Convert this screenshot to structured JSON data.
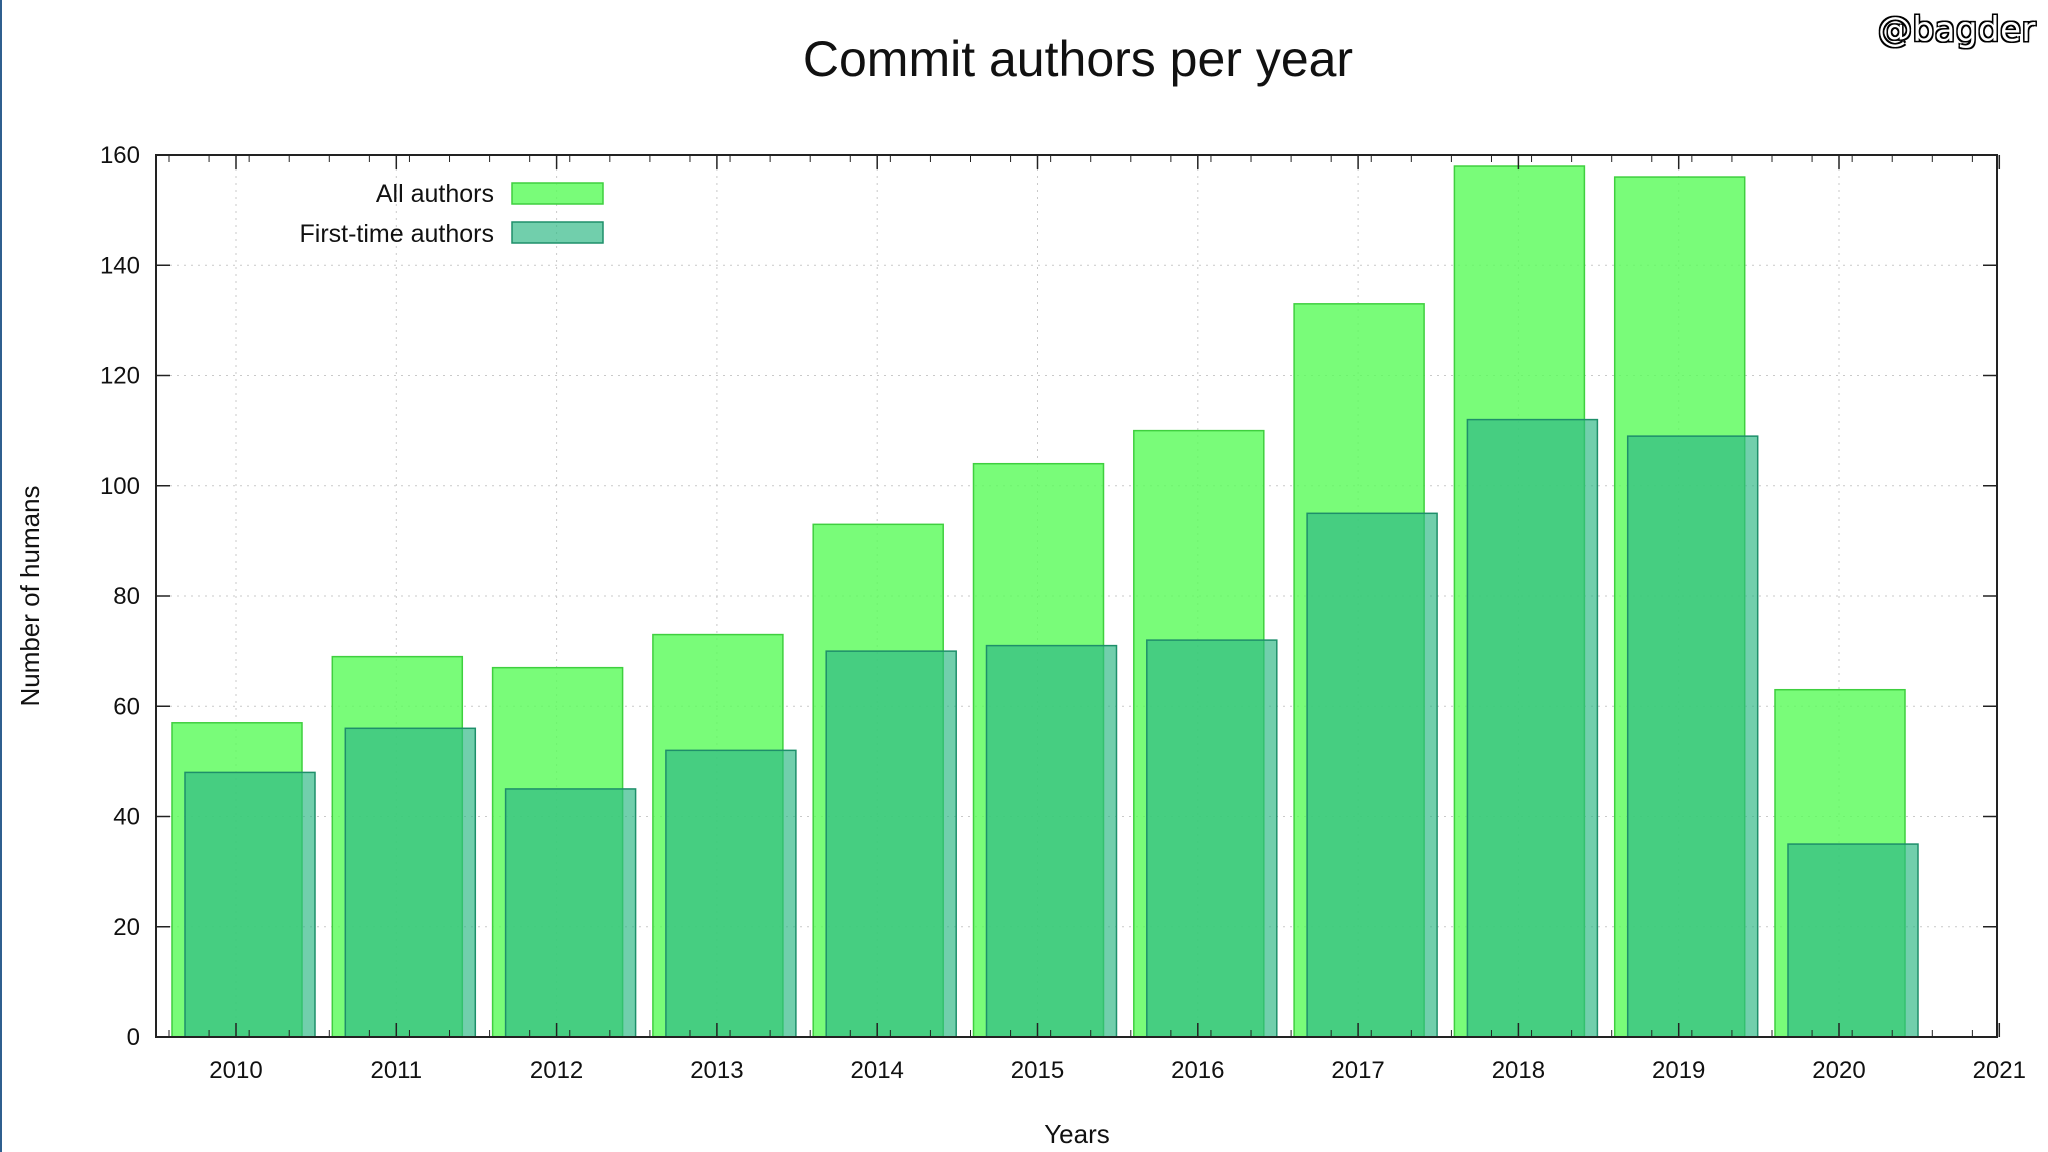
{
  "watermark": "@bagder",
  "chart_data": {
    "type": "bar",
    "title": "Commit authors per year",
    "xlabel": "Years",
    "ylabel": "Number of humans",
    "categories": [
      "2010",
      "2011",
      "2012",
      "2013",
      "2014",
      "2015",
      "2016",
      "2017",
      "2018",
      "2019",
      "2020",
      "2021"
    ],
    "yticks": [
      "0",
      "20",
      "40",
      "60",
      "80",
      "100",
      "120",
      "140",
      "160"
    ],
    "ylim": [
      0,
      160
    ],
    "grid": true,
    "legend_position": "top-left",
    "series": [
      {
        "name": "All authors",
        "color": "#5cfb5c",
        "values": [
          57,
          69,
          67,
          73,
          93,
          104,
          110,
          133,
          158,
          156,
          63,
          null
        ]
      },
      {
        "name": "First-time authors",
        "color": "#2eb885",
        "values": [
          48,
          56,
          45,
          52,
          70,
          71,
          72,
          95,
          112,
          109,
          35,
          null
        ]
      }
    ]
  }
}
